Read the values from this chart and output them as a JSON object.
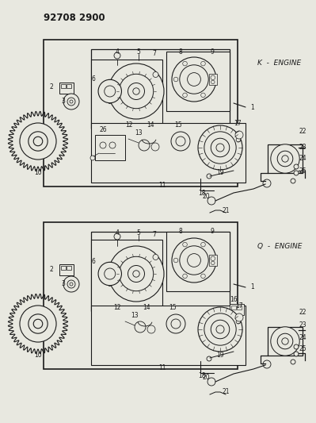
{
  "title": "92708 2900",
  "bg_color": "#e8e8e0",
  "line_color": "#1a1a1a",
  "text_color": "#1a1a1a",
  "fig_width": 3.99,
  "fig_height": 5.33,
  "dpi": 100,
  "k_engine_label": "K  -  ENGINE",
  "q_engine_label": "Q  -  ENGINE"
}
